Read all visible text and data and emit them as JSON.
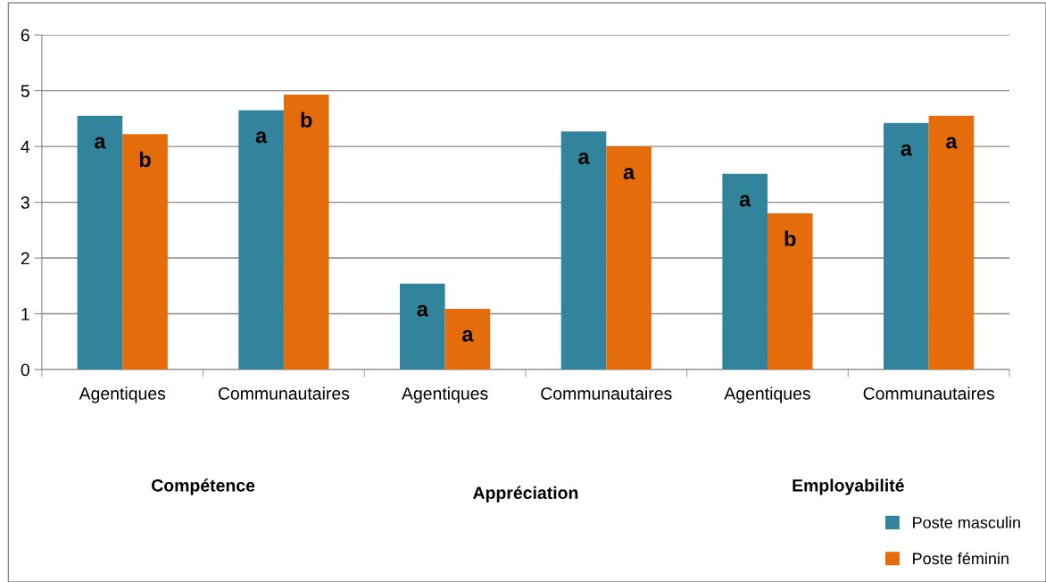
{
  "chart_data": {
    "type": "bar",
    "categories": [
      "Agentiques",
      "Communautaires",
      "Agentiques",
      "Communautaires",
      "Agentiques",
      "Communautaires"
    ],
    "series": [
      {
        "name": "Poste masculin",
        "color": "#31849b",
        "values": [
          4.55,
          4.65,
          1.54,
          4.27,
          3.51,
          4.42
        ],
        "value_labels": [
          "a",
          "a",
          "a",
          "a",
          "a",
          "a"
        ]
      },
      {
        "name": "Poste féminin",
        "color": "#e46c0a",
        "values": [
          4.22,
          4.93,
          1.09,
          4.0,
          2.8,
          4.55
        ],
        "value_labels": [
          "b",
          "b",
          "a",
          "a",
          "b",
          "a"
        ]
      }
    ],
    "annotations": [
      "Compétence",
      "Appréciation",
      "Employabilité"
    ],
    "ylim": [
      0,
      6
    ],
    "yticks": [
      0,
      1,
      2,
      3,
      4,
      5,
      6
    ],
    "grid": "y",
    "legend": "bottom right"
  }
}
